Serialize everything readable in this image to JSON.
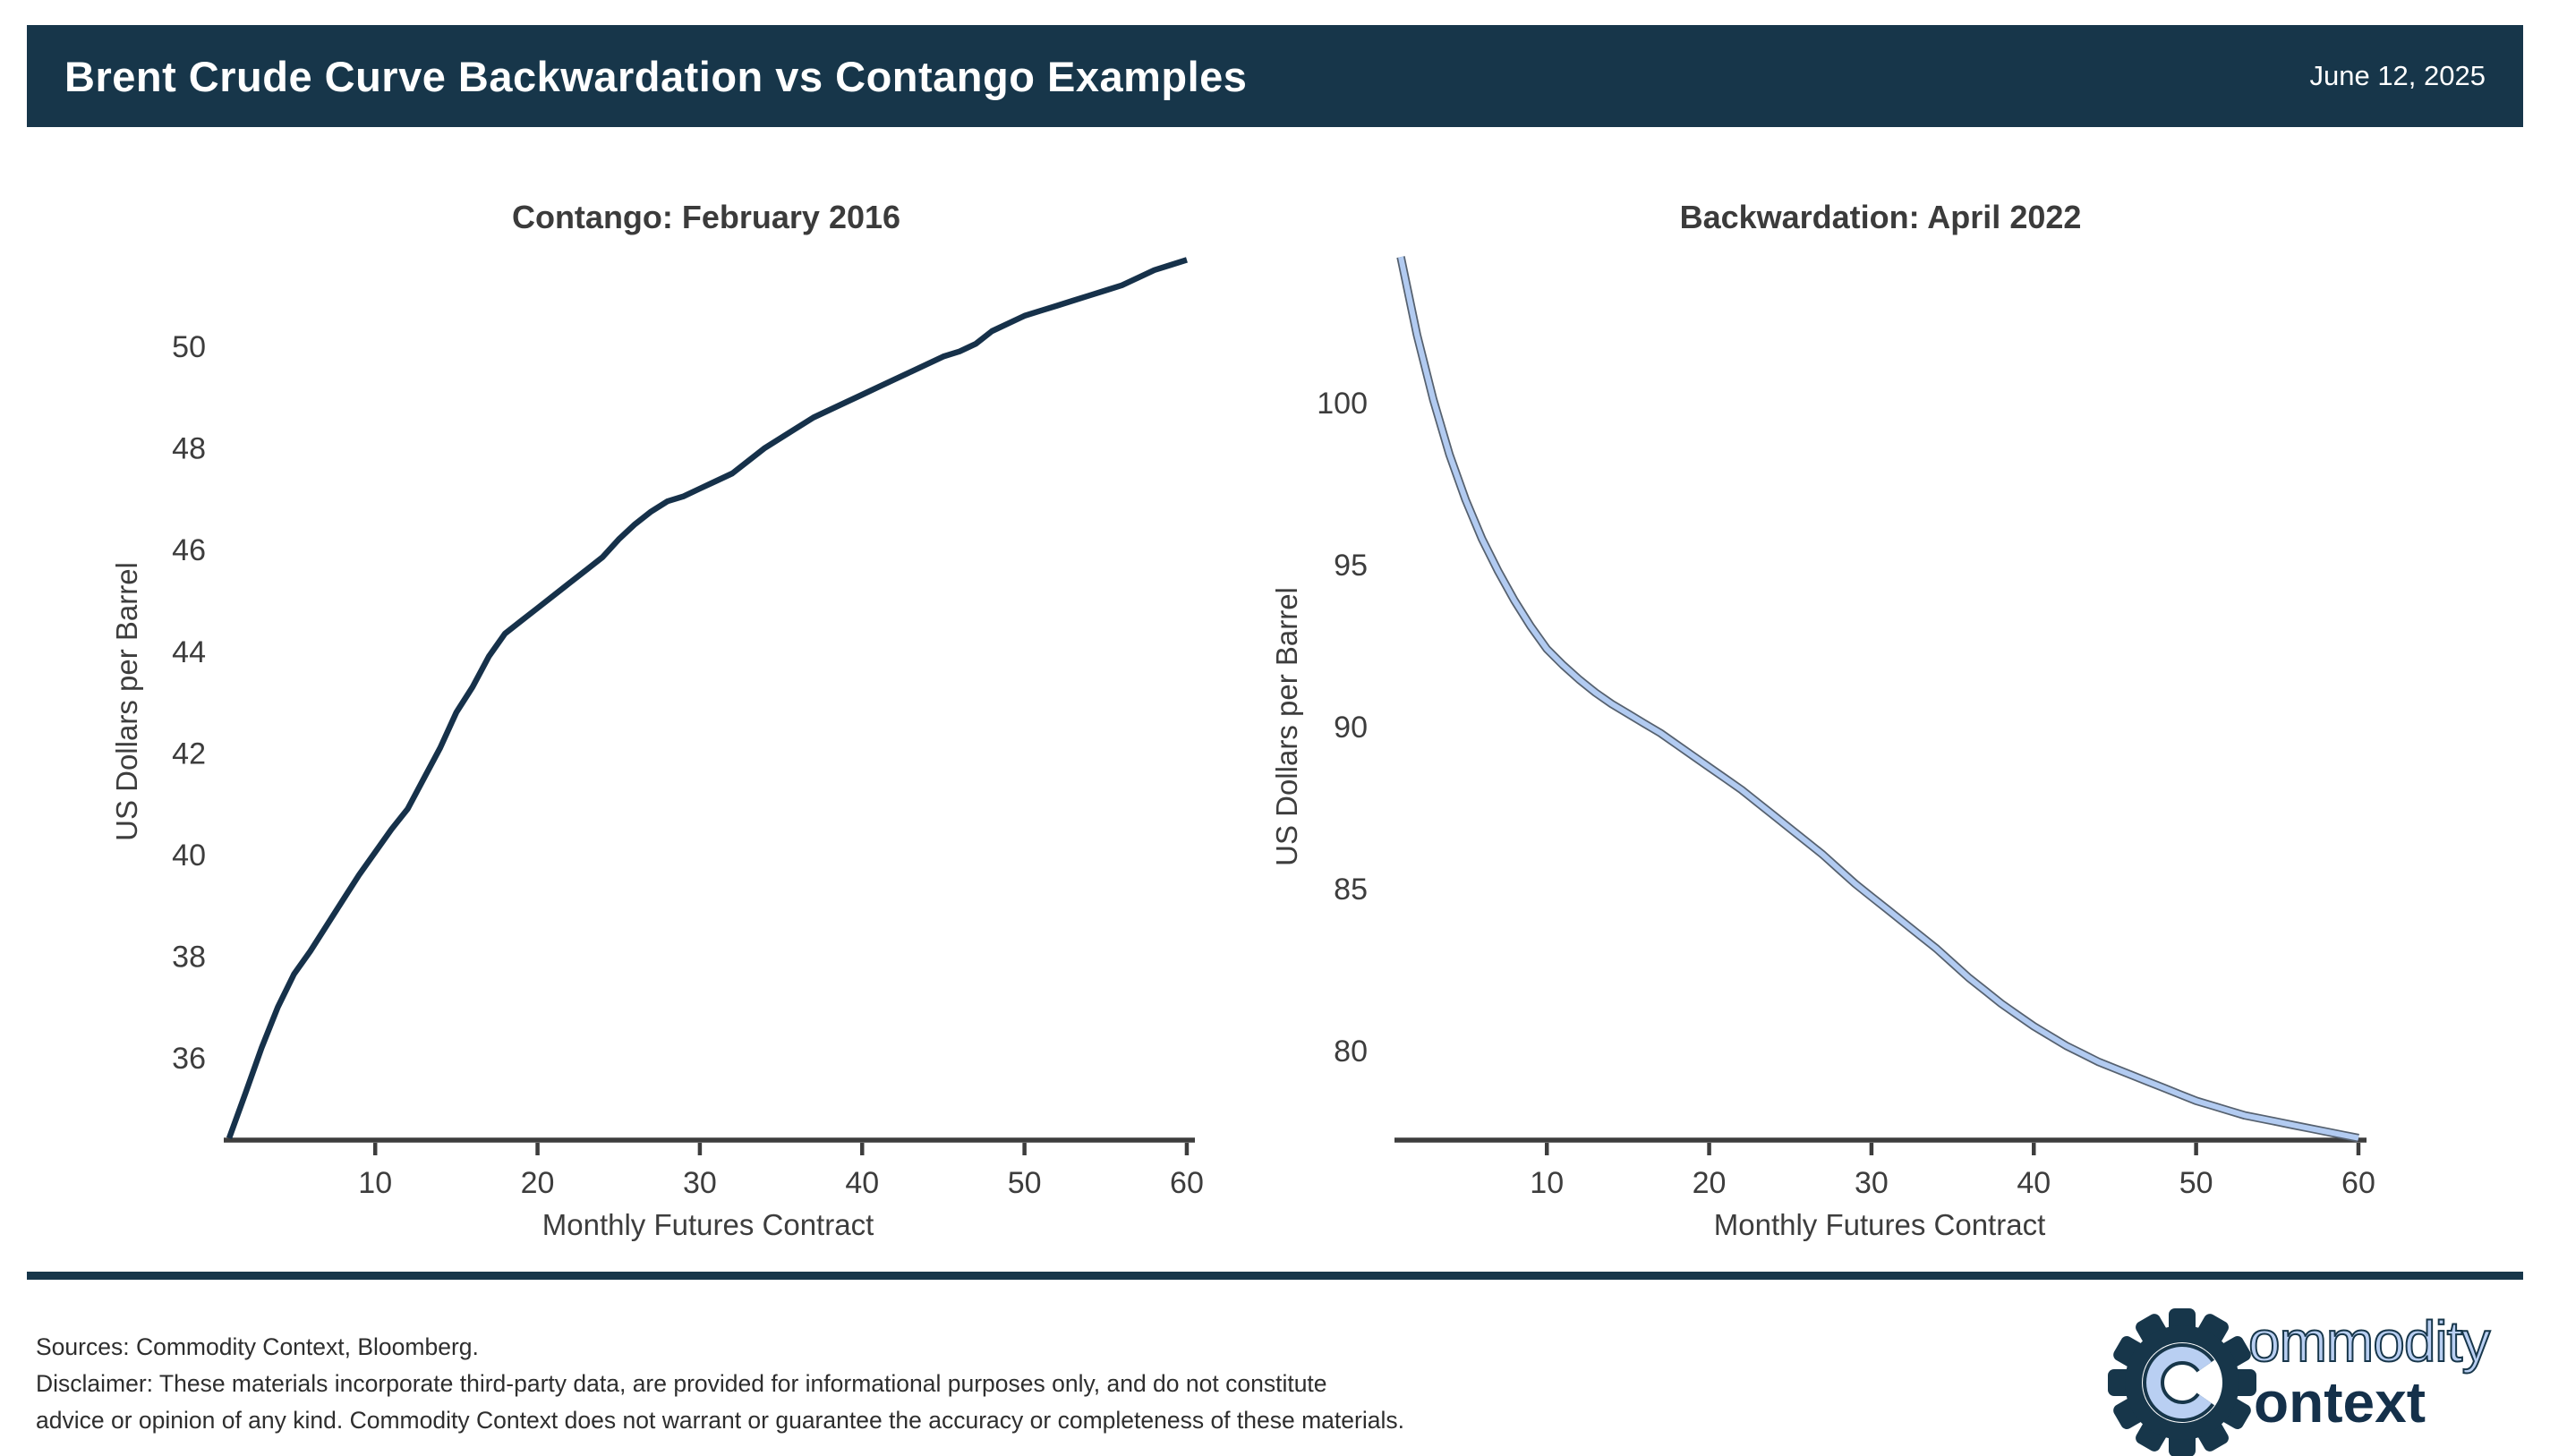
{
  "header": {
    "title": "Brent Crude Curve Backwardation vs Contango Examples",
    "date": "June 12, 2025",
    "bg_color": "#17364a",
    "text_color": "#ffffff"
  },
  "chart_data": [
    {
      "type": "line",
      "title": "Contango: February 2016",
      "xlabel": "Monthly Futures Contract",
      "ylabel": "US Dollars per Barrel",
      "xlim": [
        1,
        60
      ],
      "ylim": [
        34.3,
        51.9
      ],
      "xticks": [
        10,
        20,
        30,
        40,
        50,
        60
      ],
      "yticks": [
        36,
        38,
        40,
        42,
        44,
        46,
        48,
        50
      ],
      "grid": false,
      "legend": null,
      "line_color": "#16314a",
      "line_outline_color": null,
      "x_start_month": 1,
      "values": [
        34.42,
        35.3,
        36.2,
        37.0,
        37.65,
        38.1,
        38.6,
        39.1,
        39.6,
        40.05,
        40.5,
        40.9,
        41.5,
        42.1,
        42.8,
        43.3,
        43.9,
        44.35,
        44.6,
        44.85,
        45.1,
        45.35,
        45.6,
        45.85,
        46.2,
        46.5,
        46.75,
        46.95,
        47.05,
        47.2,
        47.35,
        47.5,
        47.75,
        48.0,
        48.2,
        48.4,
        48.6,
        48.75,
        48.9,
        49.05,
        49.2,
        49.35,
        49.5,
        49.65,
        49.8,
        49.9,
        50.05,
        50.3,
        50.45,
        50.6,
        50.7,
        50.8,
        50.9,
        51.0,
        51.1,
        51.2,
        51.35,
        51.5,
        51.6,
        51.7
      ]
    },
    {
      "type": "line",
      "title": "Backwardation: April 2022",
      "xlabel": "Monthly Futures Contract",
      "ylabel": "US Dollars per Barrel",
      "xlim": [
        1,
        60
      ],
      "ylim": [
        77.2,
        104.6
      ],
      "xticks": [
        10,
        20,
        30,
        40,
        50,
        60
      ],
      "yticks": [
        80,
        85,
        90,
        95,
        100
      ],
      "grid": false,
      "legend": null,
      "line_color": "#b2cbf1",
      "line_outline_color": "#56616f",
      "x_start_month": 1,
      "values": [
        104.5,
        102.1,
        100.1,
        98.4,
        97.0,
        95.8,
        94.8,
        93.9,
        93.1,
        92.4,
        91.9,
        91.45,
        91.05,
        90.7,
        90.4,
        90.1,
        89.8,
        89.45,
        89.1,
        88.75,
        88.4,
        88.05,
        87.65,
        87.25,
        86.85,
        86.45,
        86.05,
        85.6,
        85.15,
        84.75,
        84.35,
        83.95,
        83.55,
        83.15,
        82.7,
        82.25,
        81.85,
        81.45,
        81.1,
        80.75,
        80.45,
        80.15,
        79.9,
        79.65,
        79.45,
        79.25,
        79.05,
        78.85,
        78.65,
        78.45,
        78.3,
        78.15,
        78.0,
        77.9,
        77.8,
        77.7,
        77.6,
        77.5,
        77.4,
        77.3
      ]
    }
  ],
  "footer": {
    "lines": [
      "Sources: Commodity Context, Bloomberg.",
      "Disclaimer: These materials incorporate third-party data, are provided for informational purposes only, and do not constitute",
      "advice or opinion of any kind. Commodity Context does not warrant or guarantee the accuracy or completeness of these materials."
    ]
  },
  "logo": {
    "monogram": "C",
    "word_top": "ommodity",
    "word_bottom": "ontext",
    "navy": "#17364a",
    "blue": "#b9cff2"
  }
}
